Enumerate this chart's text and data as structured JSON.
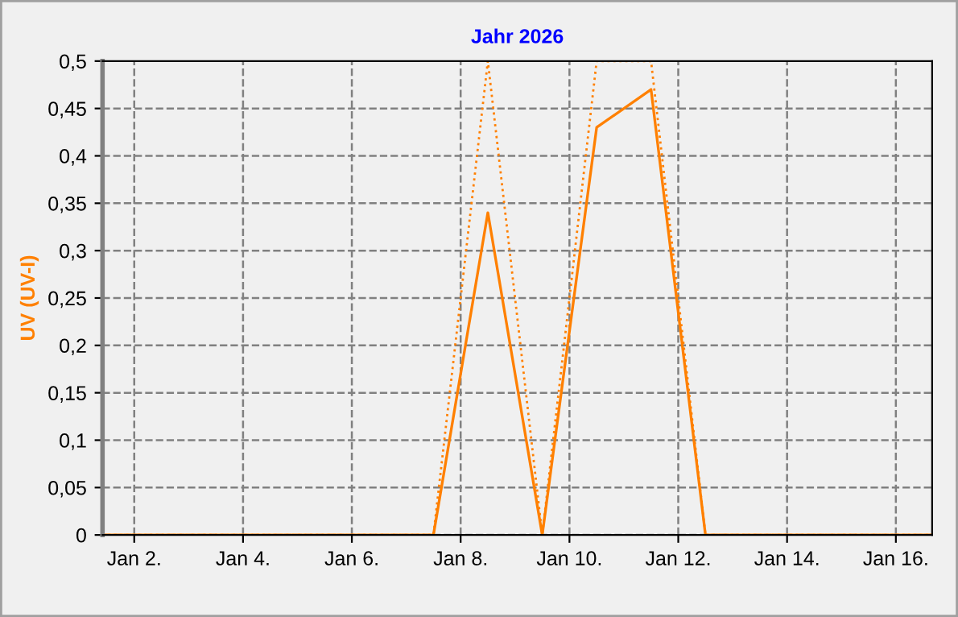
{
  "chart_data": {
    "type": "line",
    "title": "Jahr 2026",
    "ylabel": "UV (UV-I)",
    "xlim": [
      "2026-01-01T10:00",
      "2026-01-16T16:00"
    ],
    "ylim": [
      0,
      0.5
    ],
    "xticks": [
      {
        "value": "2026-01-02",
        "label": "Jan 2."
      },
      {
        "value": "2026-01-04",
        "label": "Jan 4."
      },
      {
        "value": "2026-01-06",
        "label": "Jan 6."
      },
      {
        "value": "2026-01-08",
        "label": "Jan 8."
      },
      {
        "value": "2026-01-10",
        "label": "Jan 10."
      },
      {
        "value": "2026-01-12",
        "label": "Jan 12."
      },
      {
        "value": "2026-01-14",
        "label": "Jan 14."
      },
      {
        "value": "2026-01-16",
        "label": "Jan 16."
      }
    ],
    "yticks": [
      0,
      {
        "value": 0.05,
        "label": "0,05"
      },
      {
        "value": 0.1,
        "label": "0,1"
      },
      {
        "value": 0.15,
        "label": "0,15"
      },
      {
        "value": 0.2,
        "label": "0,2"
      },
      {
        "value": 0.25,
        "label": "0,25"
      },
      {
        "value": 0.3,
        "label": "0,3"
      },
      {
        "value": 0.35,
        "label": "0,35"
      },
      {
        "value": 0.4,
        "label": "0,4"
      },
      {
        "value": 0.45,
        "label": "0,45"
      },
      {
        "value": 0.5,
        "label": "0,5"
      }
    ],
    "grid": true,
    "legend": false,
    "marker": "none",
    "series": [
      {
        "color": "#ff8000",
        "line_style": "dotted",
        "x": [
          "2026-01-01T10:00",
          "2026-01-07T12:00",
          "2026-01-08T12:00",
          "2026-01-09T12:00",
          "2026-01-10T12:00",
          "2026-01-11T12:00",
          "2026-01-12T12:00",
          "2026-01-16T16:00"
        ],
        "values": [
          0,
          0,
          0.5,
          0,
          0.5,
          0.5,
          0,
          0
        ]
      },
      {
        "color": "#ff8000",
        "line_style": "solid",
        "x": [
          "2026-01-01T10:00",
          "2026-01-07T12:00",
          "2026-01-08T12:00",
          "2026-01-09T12:00",
          "2026-01-10T12:00",
          "2026-01-11T12:00",
          "2026-01-12T12:00",
          "2026-01-16T16:00"
        ],
        "values": [
          0,
          0,
          0.34,
          0,
          0.43,
          0.47,
          0,
          0
        ]
      }
    ]
  }
}
